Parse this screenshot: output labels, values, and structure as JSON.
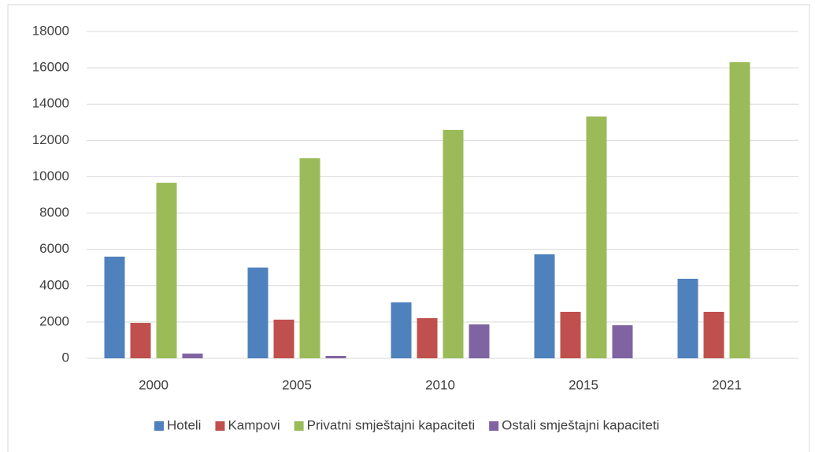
{
  "chart_data": {
    "type": "bar",
    "categories": [
      "2000",
      "2005",
      "2010",
      "2015",
      "2021"
    ],
    "series": [
      {
        "name": "Hoteli",
        "color": "#4f81bd",
        "values": [
          5600,
          5000,
          3080,
          5730,
          4380
        ]
      },
      {
        "name": "Kampovi",
        "color": "#c0504d",
        "values": [
          1950,
          2130,
          2210,
          2560,
          2560
        ]
      },
      {
        "name": "Privatni smještajni kapaciteti",
        "color": "#9bbb59",
        "values": [
          9670,
          11020,
          12580,
          13320,
          16310
        ]
      },
      {
        "name": "Ostali smještajni kapaciteti",
        "color": "#8064a2",
        "values": [
          260,
          130,
          1870,
          1820,
          0
        ]
      }
    ],
    "ylim": [
      0,
      18000
    ],
    "yticks": [
      0,
      2000,
      4000,
      6000,
      8000,
      10000,
      12000,
      14000,
      16000,
      18000
    ],
    "grid": true,
    "legend": "bottom"
  }
}
